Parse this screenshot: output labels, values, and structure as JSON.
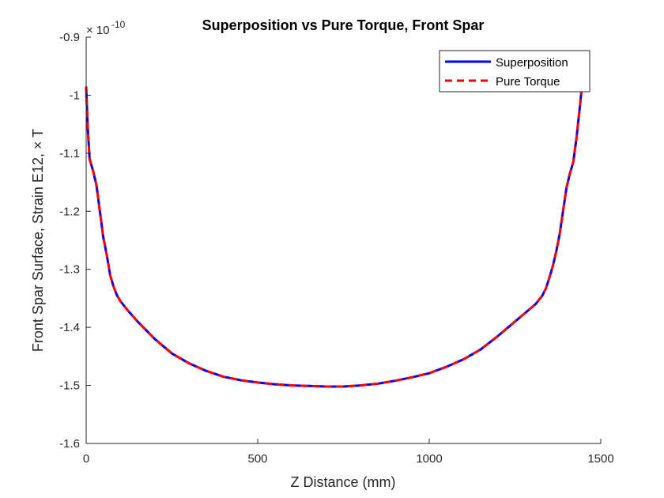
{
  "chart_data": {
    "type": "line",
    "title": "Superposition vs Pure Torque, Front Spar",
    "xlabel": "Z Distance (mm)",
    "ylabel": "Front Spar Surface, Strain E12, × T",
    "y_exponent_base": "× 10",
    "y_exponent_power": "-10",
    "xlim": [
      0,
      1500
    ],
    "ylim": [
      -1.6,
      -0.9
    ],
    "xticks": [
      0,
      500,
      1000,
      1500
    ],
    "xtick_labels": [
      "0",
      "500",
      "1000",
      "1500"
    ],
    "yticks": [
      -1.6,
      -1.5,
      -1.4,
      -1.3,
      -1.2,
      -1.1,
      -1.0,
      -0.9
    ],
    "ytick_labels": [
      "-1.6",
      "-1.5",
      "-1.4",
      "-1.3",
      "-1.2",
      "-1.1",
      "-1",
      "-0.9"
    ],
    "grid": false,
    "legend_position": "top-right",
    "x": [
      0,
      5,
      10,
      20,
      30,
      40,
      50,
      60,
      70,
      80,
      90,
      100,
      120,
      150,
      200,
      250,
      300,
      350,
      400,
      450,
      500,
      550,
      600,
      650,
      700,
      725,
      750,
      800,
      850,
      900,
      950,
      1000,
      1050,
      1100,
      1150,
      1200,
      1250,
      1290,
      1310,
      1330,
      1340,
      1350,
      1360,
      1370,
      1380,
      1390,
      1400,
      1410,
      1420,
      1430,
      1440,
      1445
    ],
    "series": [
      {
        "name": "Superposition",
        "color": "#0000ff",
        "style": "solid",
        "values": [
          -0.985,
          -1.06,
          -1.11,
          -1.13,
          -1.155,
          -1.2,
          -1.245,
          -1.275,
          -1.31,
          -1.33,
          -1.345,
          -1.355,
          -1.37,
          -1.39,
          -1.42,
          -1.445,
          -1.462,
          -1.475,
          -1.485,
          -1.491,
          -1.495,
          -1.498,
          -1.5,
          -1.501,
          -1.502,
          -1.502,
          -1.502,
          -1.5,
          -1.497,
          -1.492,
          -1.486,
          -1.479,
          -1.468,
          -1.455,
          -1.438,
          -1.415,
          -1.39,
          -1.37,
          -1.36,
          -1.345,
          -1.333,
          -1.315,
          -1.295,
          -1.27,
          -1.24,
          -1.2,
          -1.16,
          -1.135,
          -1.115,
          -1.07,
          -1.015,
          -0.985
        ]
      },
      {
        "name": "Pure Torque",
        "color": "#ff0000",
        "style": "dashed",
        "values": [
          -0.985,
          -1.06,
          -1.11,
          -1.13,
          -1.155,
          -1.2,
          -1.245,
          -1.275,
          -1.31,
          -1.33,
          -1.345,
          -1.355,
          -1.37,
          -1.39,
          -1.42,
          -1.445,
          -1.462,
          -1.475,
          -1.485,
          -1.491,
          -1.495,
          -1.498,
          -1.5,
          -1.501,
          -1.502,
          -1.502,
          -1.502,
          -1.5,
          -1.497,
          -1.492,
          -1.486,
          -1.479,
          -1.468,
          -1.455,
          -1.438,
          -1.415,
          -1.39,
          -1.37,
          -1.36,
          -1.345,
          -1.333,
          -1.315,
          -1.295,
          -1.27,
          -1.24,
          -1.2,
          -1.16,
          -1.135,
          -1.115,
          -1.07,
          -1.015,
          -0.985
        ]
      }
    ]
  }
}
